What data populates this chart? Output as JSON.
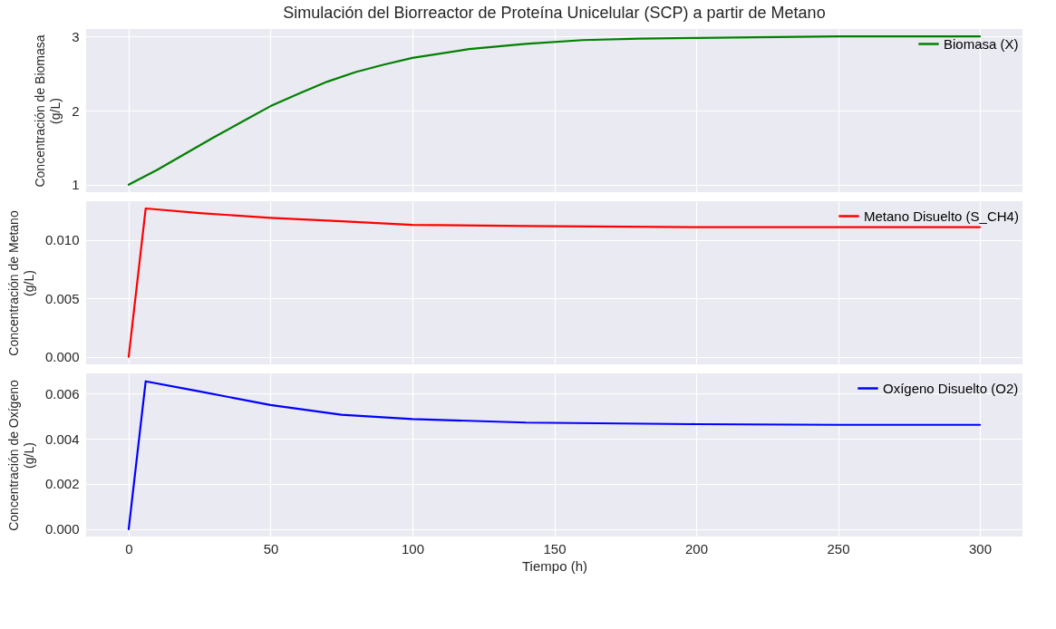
{
  "chart_data": [
    {
      "type": "line",
      "title": "Simulación del Biorreactor de Proteína Unicelular (SCP) a partir de Metano",
      "ylabel": "Concentración de Biomasa\n(g/L)",
      "x": [
        0,
        10,
        20,
        30,
        40,
        50,
        60,
        70,
        80,
        90,
        100,
        120,
        140,
        160,
        180,
        200,
        250,
        300
      ],
      "series": [
        {
          "name": "Biomasa (X)",
          "color": "#008000",
          "values": [
            1.0,
            1.2,
            1.42,
            1.64,
            1.85,
            2.06,
            2.23,
            2.39,
            2.52,
            2.62,
            2.71,
            2.83,
            2.9,
            2.95,
            2.97,
            2.98,
            3.0,
            3.0
          ]
        }
      ],
      "xlim": [
        -15,
        315
      ],
      "xticks": [
        0,
        50,
        100,
        150,
        200,
        250,
        300
      ],
      "ylim": [
        0.9,
        3.1
      ],
      "yticks": [
        1,
        2,
        3
      ],
      "grid": true,
      "legend": "top right",
      "tick_labels": "y"
    },
    {
      "type": "line",
      "ylabel": "Concentración de Metano\n(g/L)",
      "x": [
        0,
        6,
        25,
        50,
        75,
        100,
        140,
        200,
        250,
        300
      ],
      "series": [
        {
          "name": "Metano Disuelto (S_CH4)",
          "color": "#ff0000",
          "values": [
            0,
            0.0127,
            0.0123,
            0.0119,
            0.0116,
            0.0113,
            0.0112,
            0.0111,
            0.0111,
            0.0111
          ]
        }
      ],
      "xlim": [
        -15,
        315
      ],
      "xticks": [
        0,
        50,
        100,
        150,
        200,
        250,
        300
      ],
      "ylim": [
        -0.00064,
        0.01332
      ],
      "yticks": [
        {
          "value": 0,
          "label": "0.000"
        },
        {
          "value": 0.005,
          "label": "0.005"
        },
        {
          "value": 0.01,
          "label": "0.010"
        }
      ],
      "grid": true,
      "legend": "top right",
      "tick_labels": "y"
    },
    {
      "type": "line",
      "ylabel": "Concentración de Oxígeno\n(g/L)",
      "xlabel": "Tiempo (h)",
      "x": [
        0,
        6,
        25,
        50,
        75,
        100,
        140,
        200,
        250,
        300
      ],
      "series": [
        {
          "name": "Oxígeno Disuelto (O2)",
          "color": "#0000ff",
          "values": [
            0,
            0.00655,
            0.0061,
            0.0055,
            0.00507,
            0.00488,
            0.00472,
            0.00465,
            0.00462,
            0.00462
          ]
        }
      ],
      "xlim": [
        -15,
        315
      ],
      "xticks": [
        0,
        50,
        100,
        150,
        200,
        250,
        300
      ],
      "ylim": [
        -0.00033,
        0.0069
      ],
      "yticks": [
        {
          "value": 0,
          "label": "0.000"
        },
        {
          "value": 0.002,
          "label": "0.002"
        },
        {
          "value": 0.004,
          "label": "0.004"
        },
        {
          "value": 0.006,
          "label": "0.006"
        }
      ],
      "grid": true,
      "legend": "top right"
    }
  ]
}
